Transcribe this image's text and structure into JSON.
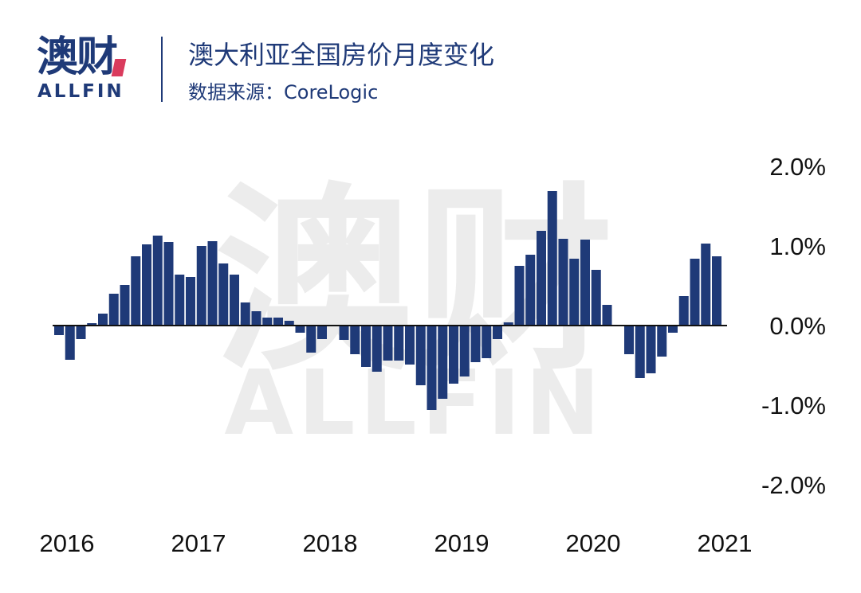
{
  "header": {
    "logo_cn": "澳财",
    "logo_en": "ALLFIN",
    "title": "澳大利亚全国房价月度变化",
    "subtitle": "数据来源：CoreLogic"
  },
  "watermark": {
    "cn": "澳财",
    "en": "ALLFIN"
  },
  "colors": {
    "bar": "#1f3a78",
    "brand": "#1f3a78",
    "accent": "#d6264b",
    "watermark": "#ececec"
  },
  "chart_data": {
    "type": "bar",
    "ylim": [
      -2.0,
      2.0
    ],
    "y_ticks": [
      2.0,
      1.0,
      0.0,
      -1.0,
      -2.0
    ],
    "y_tick_labels": [
      "2.0%",
      "1.0%",
      "0.0%",
      "-1.0%",
      "-2.0%"
    ],
    "x_tick_labels": [
      {
        "label": "2016",
        "index": 0
      },
      {
        "label": "2017",
        "index": 12
      },
      {
        "label": "2018",
        "index": 24
      },
      {
        "label": "2019",
        "index": 36
      },
      {
        "label": "2020",
        "index": 48
      },
      {
        "label": "2021",
        "index": 60
      }
    ],
    "values": [
      -0.12,
      -0.43,
      -0.17,
      0.03,
      0.15,
      0.4,
      0.51,
      0.87,
      1.02,
      1.13,
      1.05,
      0.64,
      0.61,
      1.0,
      1.06,
      0.78,
      0.64,
      0.29,
      0.18,
      0.1,
      0.1,
      0.06,
      -0.09,
      -0.34,
      -0.17,
      0.0,
      -0.18,
      -0.36,
      -0.52,
      -0.58,
      -0.44,
      -0.44,
      -0.49,
      -0.75,
      -1.06,
      -0.92,
      -0.73,
      -0.64,
      -0.46,
      -0.41,
      -0.17,
      0.04,
      0.75,
      0.89,
      1.19,
      1.69,
      1.09,
      0.84,
      1.08,
      0.7,
      0.26,
      0.0,
      -0.36,
      -0.66,
      -0.6,
      -0.39,
      -0.09,
      0.37,
      0.84,
      1.03,
      0.87
    ]
  }
}
